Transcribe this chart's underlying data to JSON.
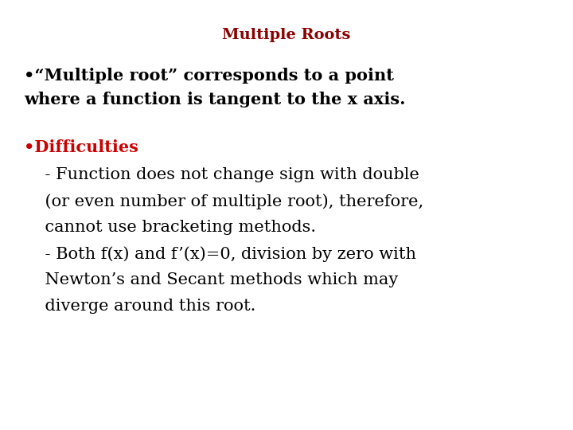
{
  "title": "Multiple Roots",
  "title_color": "#8B0000",
  "title_fontsize": 14,
  "title_weight": "bold",
  "background_color": "#ffffff",
  "bullet1_line1": "•“Multiple root” corresponds to a point",
  "bullet1_line2": "where a function is tangent to the x axis.",
  "bullet1_color": "#000000",
  "bullet1_fontsize": 15,
  "bullet1_weight": "bold",
  "bullet2_label": "•Difficulties",
  "bullet2_label_color": "#cc0000",
  "bullet2_label_fontsize": 15,
  "bullet2_label_weight": "bold",
  "body_lines": [
    "    - Function does not change sign with double",
    "    (or even number of multiple root), therefore,",
    "    cannot use bracketing methods.",
    "    - Both f(x) and f’(x)=0, division by zero with",
    "    Newton’s and Secant methods which may",
    "    diverge around this root."
  ],
  "body_color": "#000000",
  "body_fontsize": 15,
  "body_weight": "normal",
  "fig_width": 7.2,
  "fig_height": 5.4,
  "fig_dpi": 100
}
